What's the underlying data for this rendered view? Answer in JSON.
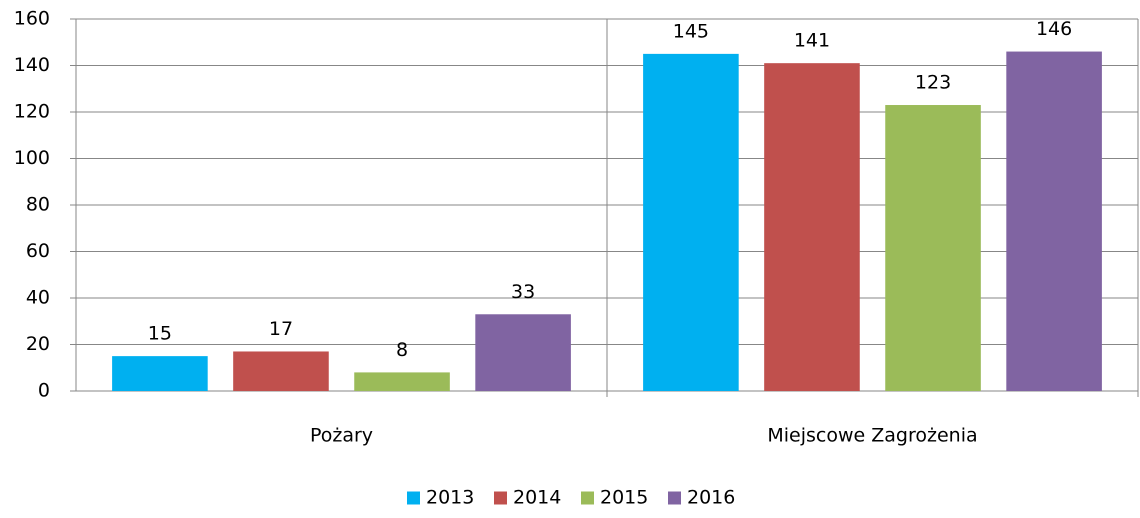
{
  "chart_data": {
    "type": "bar",
    "categories": [
      "Pożary",
      "Miejscowe Zagrożenia"
    ],
    "series": [
      {
        "name": "2013",
        "color": "#00b0f0",
        "values": [
          15,
          145
        ]
      },
      {
        "name": "2014",
        "color": "#c0504d",
        "values": [
          17,
          141
        ]
      },
      {
        "name": "2015",
        "color": "#9bbb59",
        "values": [
          8,
          123
        ]
      },
      {
        "name": "2016",
        "color": "#8064a2",
        "values": [
          33,
          146
        ]
      }
    ],
    "ylim": [
      0,
      160
    ],
    "yticks": [
      0,
      20,
      40,
      60,
      80,
      100,
      120,
      140,
      160
    ],
    "grid": true,
    "legend": "bottom"
  }
}
